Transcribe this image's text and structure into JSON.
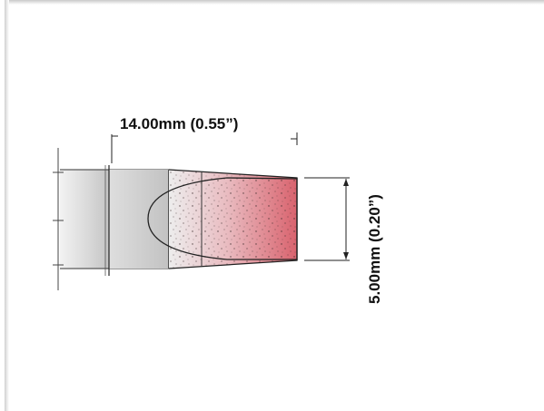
{
  "diagram": {
    "length_dimension": "14.00mm (0.55”)",
    "width_dimension": "5.00mm (0.20”)"
  },
  "colors": {
    "tip_accent": "#d9636e",
    "shaft": "#cfcfcf",
    "outline": "#222222"
  }
}
